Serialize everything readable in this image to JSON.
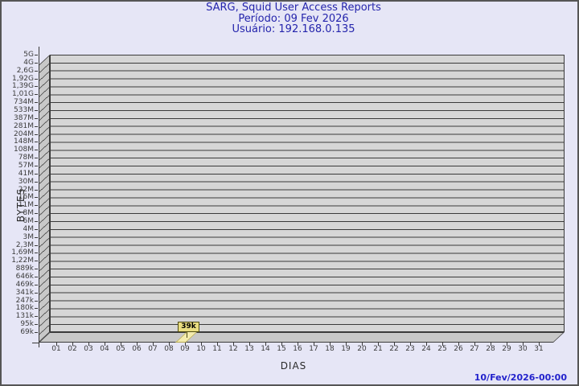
{
  "header": {
    "title": "SARG, Squid User Access Reports",
    "period_line": "Período: 09 Fev 2026",
    "user_line": "Usuário: 192.168.0.135"
  },
  "footer": {
    "generated": "10/Fev/2026-00:00"
  },
  "chart_data": {
    "type": "bar",
    "title": "SARG, Squid User Access Reports",
    "subtitle": [
      "Período: 09 Fev 2026",
      "Usuário: 192.168.0.135"
    ],
    "xlabel": "DIAS",
    "ylabel": "BYTES",
    "x_categories": [
      "01",
      "02",
      "03",
      "04",
      "05",
      "06",
      "07",
      "08",
      "09",
      "10",
      "11",
      "12",
      "13",
      "14",
      "15",
      "16",
      "17",
      "18",
      "19",
      "20",
      "21",
      "22",
      "23",
      "24",
      "25",
      "26",
      "27",
      "28",
      "29",
      "30",
      "31"
    ],
    "values": [
      0,
      0,
      0,
      0,
      0,
      0,
      0,
      0,
      39000,
      0,
      0,
      0,
      0,
      0,
      0,
      0,
      0,
      0,
      0,
      0,
      0,
      0,
      0,
      0,
      0,
      0,
      0,
      0,
      0,
      0,
      0
    ],
    "annotations": [
      {
        "x": "09",
        "label": "39k",
        "value_bytes": 39000
      }
    ],
    "y_scale": "log",
    "ylim": [
      "69k",
      "5G"
    ],
    "y_tick_labels": [
      "5G",
      "4G",
      "2,6G",
      "1,92G",
      "1,39G",
      "1,01G",
      "734M",
      "533M",
      "387M",
      "281M",
      "204M",
      "148M",
      "108M",
      "78M",
      "57M",
      "41M",
      "30M",
      "22M",
      "16M",
      "11M",
      "8M",
      "6M",
      "4M",
      "3M",
      "2,3M",
      "1,69M",
      "1,22M",
      "889k",
      "646k",
      "469k",
      "341k",
      "247k",
      "180k",
      "131k",
      "95k",
      "69k"
    ],
    "grid": "horizontal",
    "legend": "none",
    "bar_color": "#f4ecae",
    "colors": {
      "background": "#e6e6f6",
      "plot_face": "#d6d6d6",
      "plot_wall": "#c8c8c8",
      "gridline": "#3a3a3a",
      "title_text": "#2424ac",
      "footer_text": "#2222cc",
      "tag_fill": "#e9dd80"
    }
  }
}
